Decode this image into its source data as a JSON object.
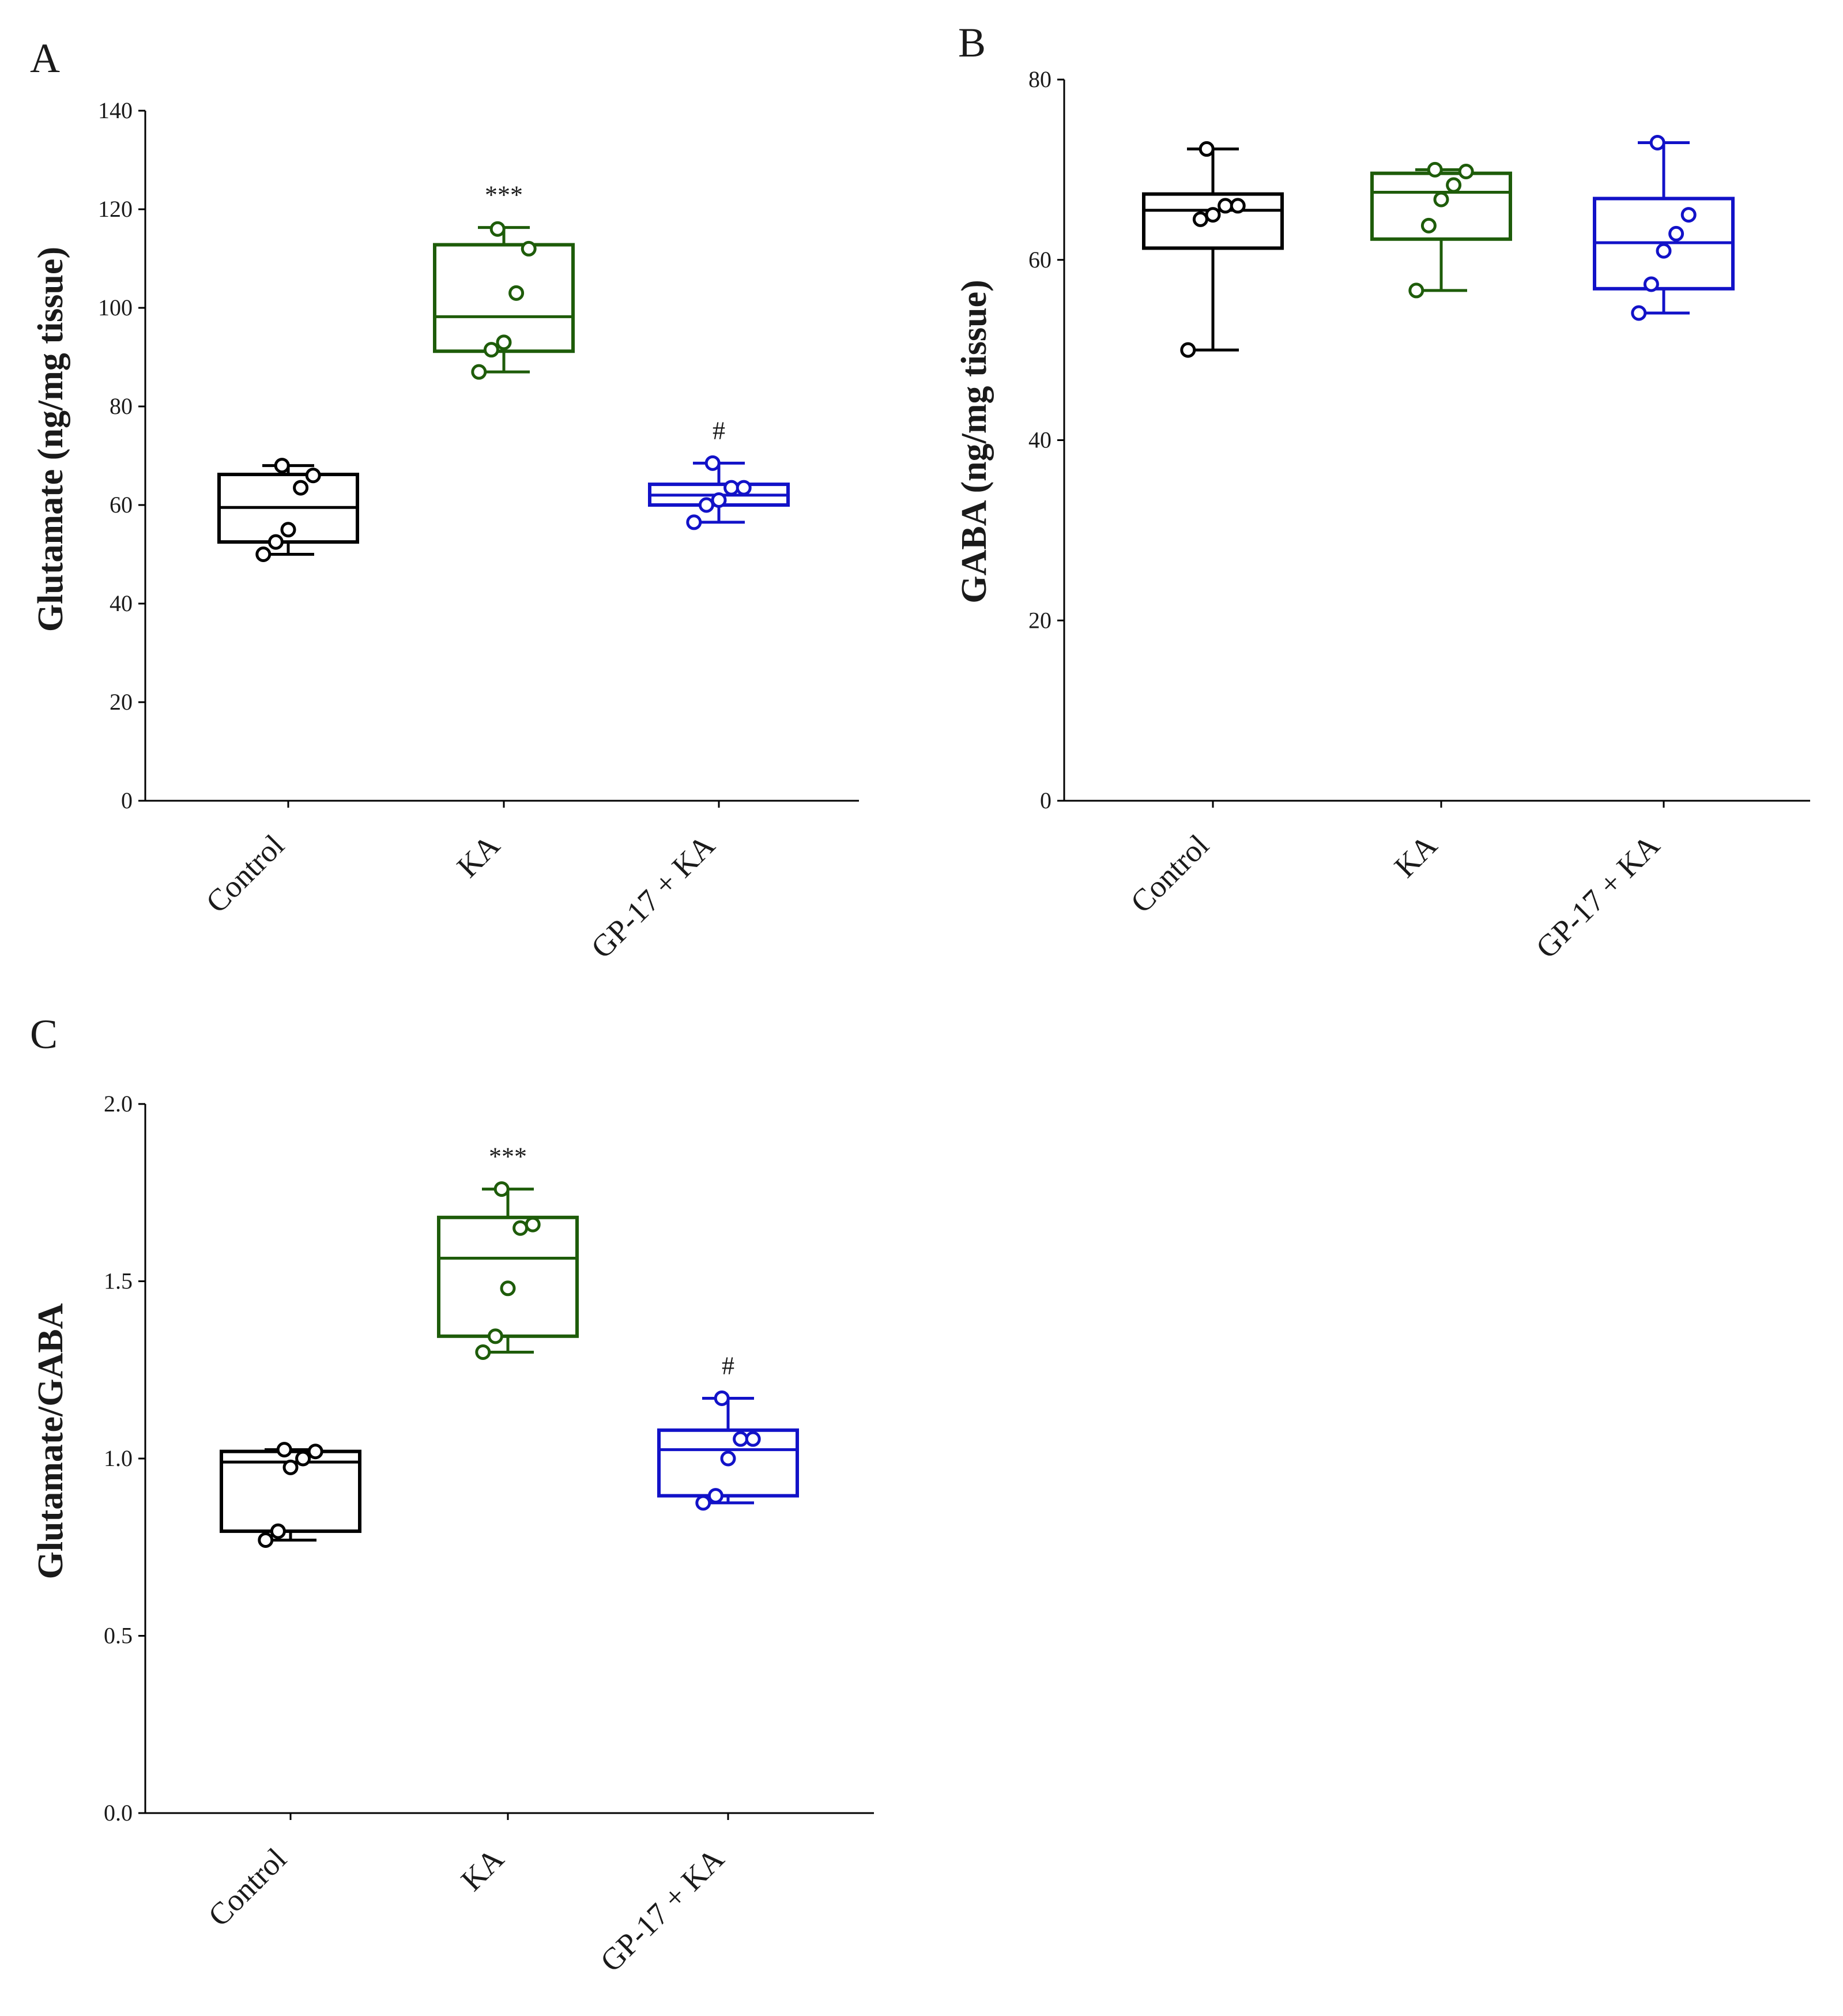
{
  "colors": {
    "Control": "#000000",
    "KA": "#1e5c0a",
    "GP-17 + KA": "#1212c8",
    "axis": "#000000"
  },
  "chart_data": [
    {
      "type": "box",
      "panel": "A",
      "ylabel": "Glutamate (ng/mg tissue)",
      "ylim": [
        0,
        140
      ],
      "yticks": [
        0,
        20,
        40,
        60,
        80,
        100,
        120,
        140
      ],
      "categories": [
        "Control",
        "KA",
        "GP-17 + KA"
      ],
      "boxes": [
        {
          "min": 50,
          "q1": 52.5,
          "median": 59.5,
          "q3": 66.2,
          "max": 68,
          "points": [
            50,
            52.5,
            55,
            63.5,
            66,
            68
          ],
          "annotation": ""
        },
        {
          "min": 87,
          "q1": 91.2,
          "median": 98.2,
          "q3": 112.8,
          "max": 116.3,
          "points": [
            87,
            91.5,
            93,
            103,
            112,
            116
          ],
          "annotation": "***"
        },
        {
          "min": 56.5,
          "q1": 60,
          "median": 62,
          "q3": 64.2,
          "max": 68.5,
          "points": [
            56.5,
            60,
            61,
            63.5,
            63.5,
            68.5
          ],
          "annotation": "#"
        }
      ]
    },
    {
      "type": "box",
      "panel": "B",
      "ylabel": "GABA (ng/mg tissue)",
      "ylim": [
        0,
        80
      ],
      "yticks": [
        0,
        20,
        40,
        60,
        80
      ],
      "categories": [
        "Control",
        "KA",
        "GP-17 + KA"
      ],
      "boxes": [
        {
          "min": 50,
          "q1": 61.3,
          "median": 65.5,
          "q3": 67.3,
          "max": 72.3,
          "points": [
            50,
            64.5,
            65,
            66,
            66,
            72.3
          ],
          "annotation": ""
        },
        {
          "min": 56.6,
          "q1": 62.3,
          "median": 67.5,
          "q3": 69.6,
          "max": 70,
          "points": [
            56.6,
            63.8,
            66.7,
            68.3,
            69.8,
            70
          ],
          "annotation": ""
        },
        {
          "min": 54.1,
          "q1": 56.8,
          "median": 61.9,
          "q3": 66.8,
          "max": 73,
          "points": [
            54.1,
            57.3,
            61,
            62.9,
            65,
            73
          ],
          "annotation": ""
        }
      ]
    },
    {
      "type": "box",
      "panel": "C",
      "ylabel": "Glutamate/GABA",
      "ylim": [
        0,
        2.0
      ],
      "yticks": [
        "0.0",
        "0.5",
        "1.0",
        "1.5",
        "2.0"
      ],
      "categories": [
        "Control",
        "KA",
        "GP-17 + KA"
      ],
      "boxes": [
        {
          "min": 0.77,
          "q1": 0.795,
          "median": 0.99,
          "q3": 1.02,
          "max": 1.025,
          "points": [
            0.77,
            0.795,
            0.975,
            1.0,
            1.02,
            1.025
          ],
          "annotation": ""
        },
        {
          "min": 1.3,
          "q1": 1.345,
          "median": 1.565,
          "q3": 1.68,
          "max": 1.76,
          "points": [
            1.3,
            1.345,
            1.48,
            1.65,
            1.66,
            1.76
          ],
          "annotation": "***"
        },
        {
          "min": 0.875,
          "q1": 0.895,
          "median": 1.025,
          "q3": 1.08,
          "max": 1.17,
          "points": [
            0.875,
            0.895,
            1.0,
            1.055,
            1.055,
            1.17
          ],
          "annotation": "#"
        }
      ]
    }
  ]
}
